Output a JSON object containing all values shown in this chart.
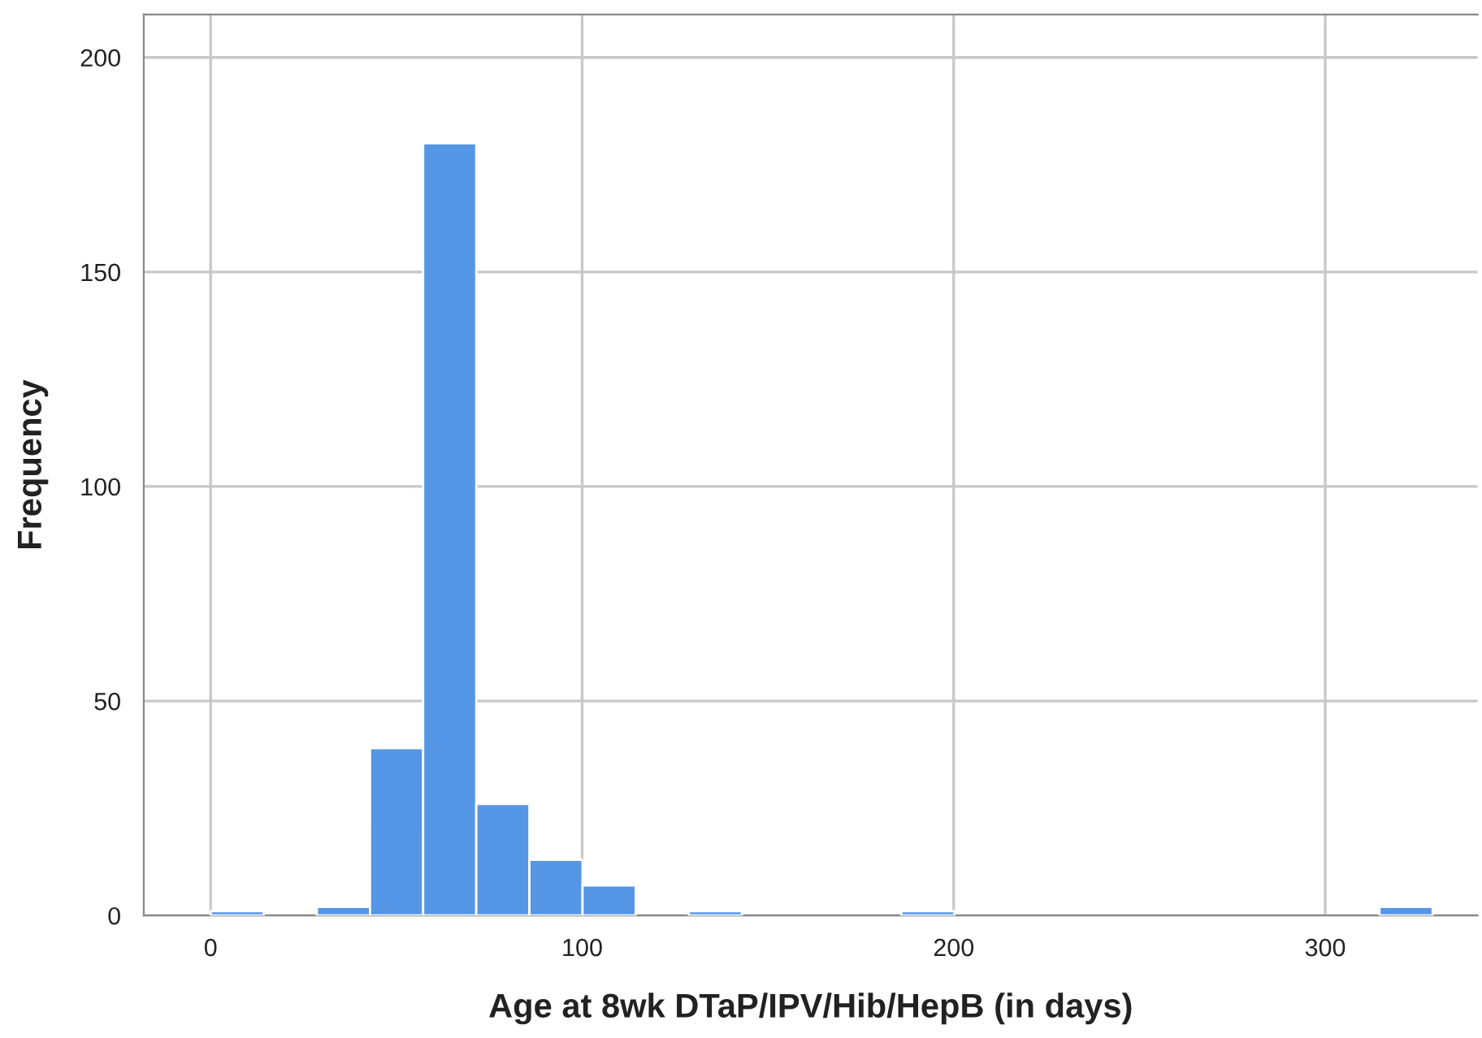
{
  "chart_data": {
    "type": "histogram",
    "xlabel": "Age at 8wk DTaP/IPV/Hib/HepB (in days)",
    "ylabel": "Frequency",
    "bins": [
      0,
      14.3,
      28.6,
      42.9,
      57.2,
      71.5,
      85.8,
      100.1,
      114.4,
      128.7,
      143,
      157.3,
      171.6,
      185.9,
      200.2,
      214.5,
      228.8,
      243.1,
      257.4,
      271.7,
      286,
      300.3,
      314.6,
      328.9
    ],
    "values": [
      1,
      0,
      2,
      39,
      180,
      26,
      13,
      7,
      0,
      1,
      0,
      0,
      0,
      1,
      0,
      0,
      0,
      0,
      0,
      0,
      0,
      0,
      2
    ],
    "color": "#5596e6",
    "xlim": [
      -18,
      341
    ],
    "ylim": [
      0,
      210
    ],
    "xticks": [
      0,
      100,
      200,
      300
    ],
    "yticks": [
      0,
      50,
      100,
      150,
      200
    ],
    "grid": true
  }
}
